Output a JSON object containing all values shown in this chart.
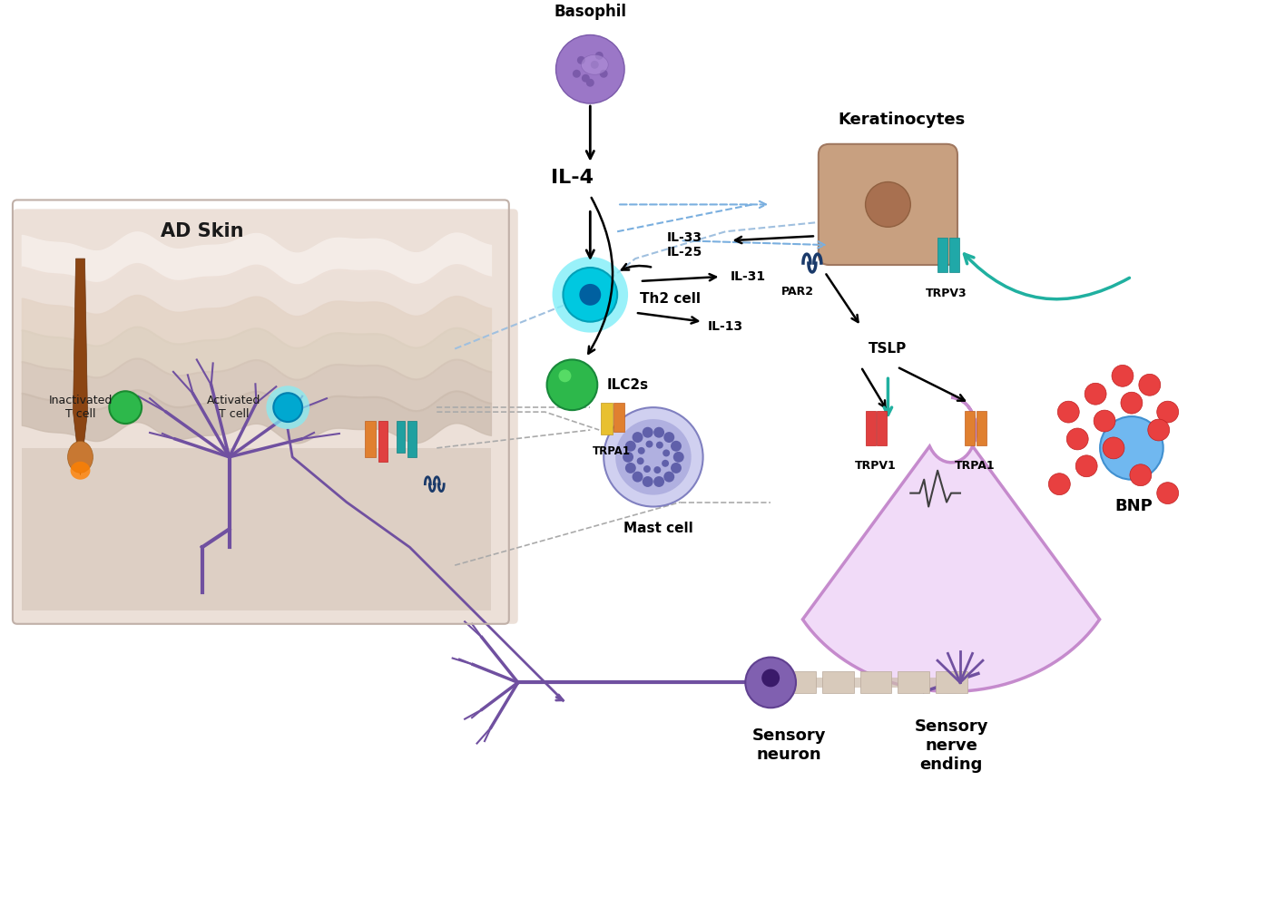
{
  "title": "",
  "background_color": "#ffffff",
  "labels": {
    "basophil": "Basophil",
    "il4": "IL-4",
    "th2_cell": "Th2 cell",
    "ilc2s": "ILC2s",
    "mast_cell": "Mast cell",
    "trpa1_mast": "TRPA1",
    "keratinocytes": "Keratinocytes",
    "il33_il25": "IL-33\nIL-25",
    "par2": "PAR2",
    "trpv3": "TRPV3",
    "tslp": "TSLP",
    "il31": "IL-31",
    "il13": "IL-13",
    "trpv1": "TRPV1",
    "trpa1_nerve": "TRPA1",
    "bnp": "BNP",
    "ad_skin": "AD Skin",
    "inactivated_t": "Inactivated\nT cell",
    "activated_t": "Activated\nT cell",
    "sensory_neuron": "Sensory\nneuron",
    "sensory_nerve": "Sensory\nnerve\nending"
  },
  "colors": {
    "basophil": "#9b77c7",
    "basophil_dark": "#7b5aaa",
    "th2_cell": "#00c8e0",
    "th2_glow": "#80eef8",
    "ilc2s": "#2db84b",
    "mast_cell_outer": "#b8b8e8",
    "mast_cell_inner": "#8080c8",
    "mast_cell_dots": "#6060aa",
    "keratinocyte": "#c8957a",
    "keratinocyte_dark": "#a87860",
    "par2": "#2d5ea8",
    "trpv3": "#20a0a0",
    "trpv1": "#e04040",
    "trpa1": "#e08030",
    "bnp_cell": "#60a8e0",
    "bnp_dots": "#e84040",
    "arrow_black": "#000000",
    "arrow_teal": "#20b0a0",
    "arrow_dashed": "#7aafdf",
    "arrow_gray_dashed": "#909090",
    "purple": "#7050a0",
    "skin_bg": "#e8d8cc",
    "skin_layer1": "#f0e0d8",
    "skin_layer2": "#e0cfc5",
    "skin_layer3": "#d0bfb5",
    "inactivated_t": "#2db84b",
    "activated_t_outer": "#80eef8",
    "activated_t_inner": "#00a8d0",
    "nerve_color": "#7050a0",
    "nerve_ending_fill": "#f0d8f8",
    "nerve_ending_border": "#c080d0",
    "trpa1_mast_color1": "#e08030",
    "trpa1_mast_color2": "#e8d040"
  }
}
